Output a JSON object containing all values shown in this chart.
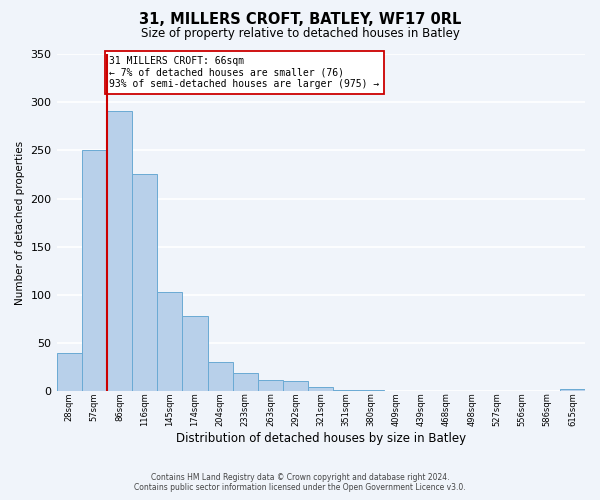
{
  "title": "31, MILLERS CROFT, BATLEY, WF17 0RL",
  "subtitle": "Size of property relative to detached houses in Batley",
  "xlabel": "Distribution of detached houses by size in Batley",
  "ylabel": "Number of detached properties",
  "bin_labels": [
    "28sqm",
    "57sqm",
    "86sqm",
    "116sqm",
    "145sqm",
    "174sqm",
    "204sqm",
    "233sqm",
    "263sqm",
    "292sqm",
    "321sqm",
    "351sqm",
    "380sqm",
    "409sqm",
    "439sqm",
    "468sqm",
    "498sqm",
    "527sqm",
    "556sqm",
    "586sqm",
    "615sqm"
  ],
  "bar_values": [
    40,
    250,
    291,
    225,
    103,
    78,
    30,
    19,
    12,
    11,
    4,
    1,
    1,
    0,
    0,
    0,
    0,
    0,
    0,
    0,
    2
  ],
  "bar_color": "#b8d0ea",
  "bar_edge_color": "#6aaad4",
  "vline_color": "#cc0000",
  "annotation_text": "31 MILLERS CROFT: 66sqm\n← 7% of detached houses are smaller (76)\n93% of semi-detached houses are larger (975) →",
  "annotation_box_color": "#ffffff",
  "annotation_box_edge": "#cc0000",
  "ylim": [
    0,
    350
  ],
  "yticks": [
    0,
    50,
    100,
    150,
    200,
    250,
    300,
    350
  ],
  "footer_line1": "Contains HM Land Registry data © Crown copyright and database right 2024.",
  "footer_line2": "Contains public sector information licensed under the Open Government Licence v3.0.",
  "background_color": "#f0f4fa",
  "grid_color": "#ffffff",
  "title_fontsize": 10.5,
  "subtitle_fontsize": 8.5
}
